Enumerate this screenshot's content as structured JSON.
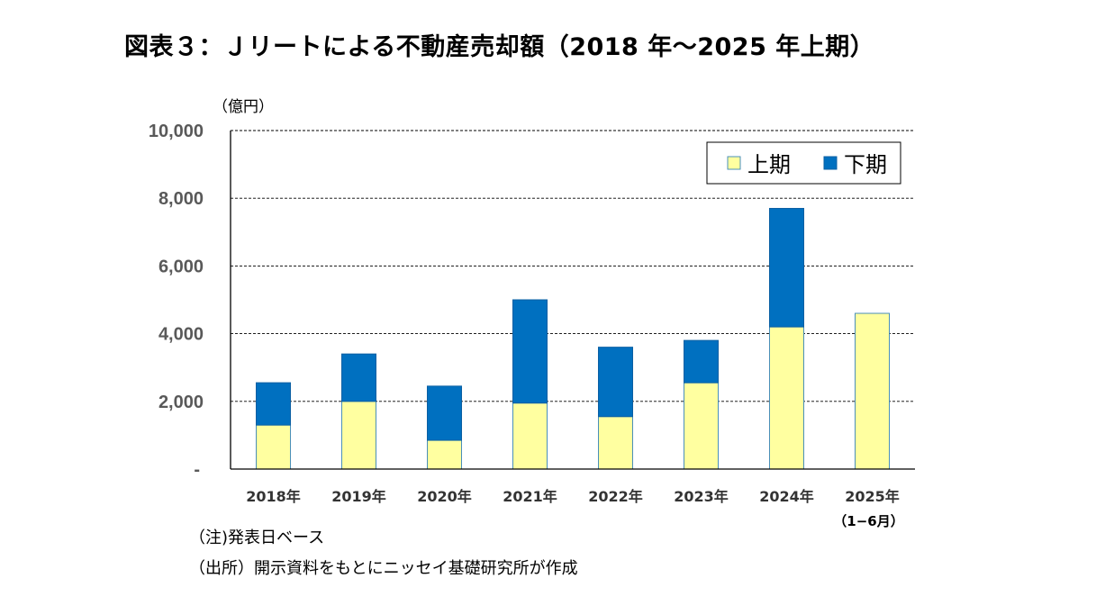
{
  "header": {
    "title": "図表３：Ｊリートによる不動産売却額（2018 年～2025 年上期）"
  },
  "notes": {
    "unit": "（億円）",
    "note": "（注)発表日ベース",
    "source": "（出所）開示資料をもとにニッセイ基礎研究所が作成"
  },
  "chart_data": {
    "type": "bar",
    "stacked": true,
    "title": "図表３：Ｊリートによる不動産売却額（2018 年～2025 年上期）",
    "ylabel": "（億円）",
    "ylim": [
      0,
      10000
    ],
    "yticks": [
      0,
      2000,
      4000,
      6000,
      8000,
      10000
    ],
    "ytick_labels": [
      "-",
      "2,000",
      "4,000",
      "6,000",
      "8,000",
      "10,000"
    ],
    "grid": "horizontal dashed",
    "legend_position": "top-right",
    "categories": [
      "2018年",
      "2019年",
      "2020年",
      "2021年",
      "2022年",
      "2023年",
      "2024年",
      "2025年"
    ],
    "category_sublabels": [
      "",
      "",
      "",
      "",
      "",
      "",
      "",
      "（1−6月）"
    ],
    "series": [
      {
        "name": "上期",
        "color": "#ffffa0",
        "values": [
          1300,
          2000,
          850,
          1950,
          1550,
          2550,
          4200,
          4600
        ]
      },
      {
        "name": "下期",
        "color": "#0070c0",
        "values": [
          1250,
          1400,
          1600,
          3050,
          2050,
          1250,
          3500,
          0
        ]
      }
    ]
  }
}
